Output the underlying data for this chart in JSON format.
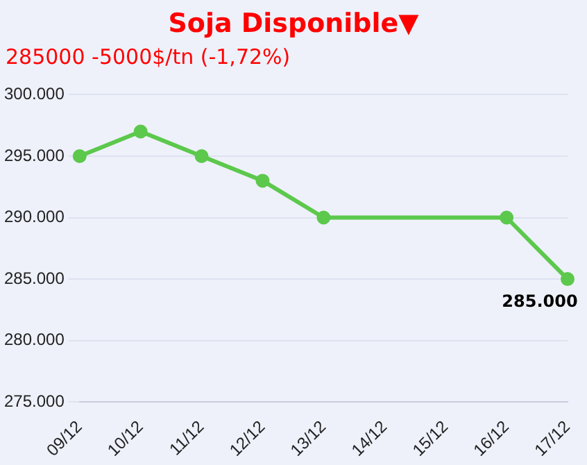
{
  "chart_data": {
    "type": "line",
    "title": "Soja Disponible▼",
    "subtitle": "285000 -5000$/tn (-1,72%)",
    "categories": [
      "09/12",
      "10/12",
      "11/12",
      "12/12",
      "13/12",
      "14/12",
      "15/12",
      "16/12",
      "17/12"
    ],
    "series": [
      {
        "color": "#5cc84c",
        "values": [
          295000,
          297000,
          295000,
          293000,
          290000,
          null,
          null,
          290000,
          285000
        ]
      }
    ],
    "ylim": [
      275000,
      300000
    ],
    "yticks": [
      {
        "value": 275000,
        "label": "275.000"
      },
      {
        "value": 280000,
        "label": "280.000"
      },
      {
        "value": 285000,
        "label": "285.000"
      },
      {
        "value": 290000,
        "label": "290.000"
      },
      {
        "value": 295000,
        "label": "295.000"
      },
      {
        "value": 300000,
        "label": "300.000"
      }
    ],
    "grid": "y",
    "marker": "circle",
    "legend": false,
    "annotations": [
      {
        "text": "285.000",
        "x": "17/12",
        "y": 285000
      }
    ]
  }
}
